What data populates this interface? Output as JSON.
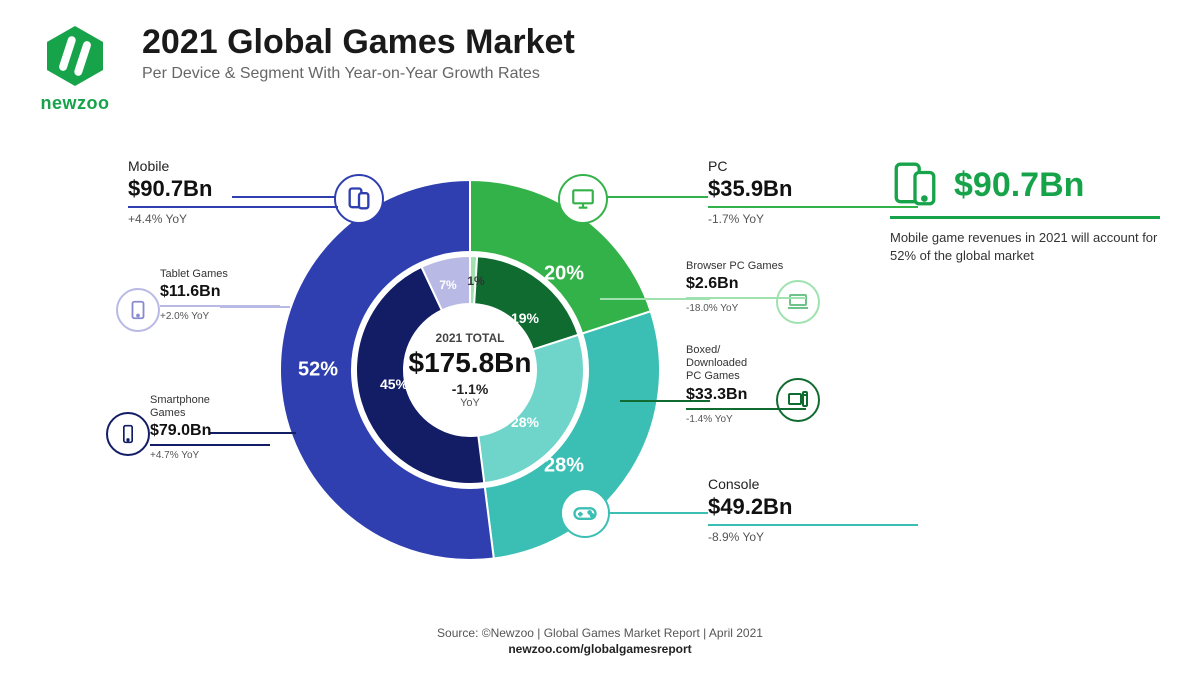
{
  "brand": {
    "name": "newzoo",
    "accent": "#16a34a",
    "logo_bg": "#16a34a",
    "logo_stripe": "#ffffff"
  },
  "header": {
    "title": "2021 Global Games Market",
    "subtitle": "Per Device & Segment With Year-on-Year Growth Rates"
  },
  "chart": {
    "type": "donut-nested",
    "background_color": "#ffffff",
    "center": {
      "label": "2021 TOTAL",
      "value": "$175.8Bn",
      "yoy": "-1.1%",
      "yoy_unit": "YoY"
    },
    "outer_ring": {
      "inner_radius": 118,
      "outer_radius": 190,
      "segments": [
        {
          "id": "pc",
          "label": "PC",
          "value": "$35.9Bn",
          "yoy": "-1.7% YoY",
          "percent": 20,
          "color": "#34b24a",
          "pct_label": "20%"
        },
        {
          "id": "console",
          "label": "Console",
          "value": "$49.2Bn",
          "yoy": "-8.9% YoY",
          "percent": 28,
          "color": "#3bbfb4",
          "pct_label": "28%"
        },
        {
          "id": "mobile",
          "label": "Mobile",
          "value": "$90.7Bn",
          "yoy": "+4.4% YoY",
          "percent": 52,
          "color": "#2f3fb0",
          "pct_label": "52%"
        }
      ]
    },
    "inner_ring": {
      "inner_radius": 66,
      "outer_radius": 114,
      "segments": [
        {
          "id": "browser-pc",
          "label": "Browser PC Games",
          "value": "$2.6Bn",
          "yoy": "-18.0% YoY",
          "percent": 1,
          "color": "#9fe2b0",
          "pct_label": "1%"
        },
        {
          "id": "boxed-pc",
          "label": "Boxed/\nDownloaded\nPC Games",
          "value": "$33.3Bn",
          "yoy": "-1.4% YoY",
          "percent": 19,
          "color": "#0f6b2f",
          "pct_label": "19%"
        },
        {
          "id": "console-inner",
          "label": "Console",
          "value": "$49.2Bn",
          "yoy": "-8.9% YoY",
          "percent": 28,
          "color": "#6fd5cb",
          "pct_label": "28%"
        },
        {
          "id": "smartphone",
          "label": "Smartphone Games",
          "value": "$79.0Bn",
          "yoy": "+4.7% YoY",
          "percent": 45,
          "color": "#131d66",
          "pct_label": "45%"
        },
        {
          "id": "tablet",
          "label": "Tablet Games",
          "value": "$11.6Bn",
          "yoy": "+2.0% YoY",
          "percent": 7,
          "color": "#b9b9e6",
          "pct_label": "7%"
        }
      ]
    },
    "pct_font_size_outer": 20,
    "pct_font_size_inner": 14
  },
  "callouts": {
    "pc": {
      "cat": "PC",
      "val": "$35.9Bn",
      "yoy": "-1.7% YoY",
      "rule_color": "#34b24a",
      "icon_border": "#34b24a"
    },
    "browserpc": {
      "cat": "Browser PC Games",
      "val": "$2.6Bn",
      "yoy": "-18.0% YoY",
      "rule_color": "#9fe2b0",
      "icon_border": "#9fe2b0"
    },
    "boxedpc": {
      "cat": "Boxed/\nDownloaded\nPC Games",
      "val": "$33.3Bn",
      "yoy": "-1.4% YoY",
      "rule_color": "#0f6b2f",
      "icon_border": "#0f6b2f"
    },
    "console": {
      "cat": "Console",
      "val": "$49.2Bn",
      "yoy": "-8.9% YoY",
      "rule_color": "#3bbfb4",
      "icon_border": "#3bbfb4"
    },
    "mobile": {
      "cat": "Mobile",
      "val": "$90.7Bn",
      "yoy": "+4.4% YoY",
      "rule_color": "#2f3fb0",
      "icon_border": "#2f3fb0"
    },
    "tablet": {
      "cat": "Tablet Games",
      "val": "$11.6Bn",
      "yoy": "+2.0% YoY",
      "rule_color": "#b9b9e6",
      "icon_border": "#b9b9e6"
    },
    "smartphone": {
      "cat": "Smartphone\nGames",
      "val": "$79.0Bn",
      "yoy": "+4.7% YoY",
      "rule_color": "#131d66",
      "icon_border": "#131d66"
    }
  },
  "highlight": {
    "value": "$90.7Bn",
    "color": "#16a34a",
    "text": "Mobile game revenues in 2021 will account for 52% of the global market"
  },
  "footer": {
    "source": "Source: ©Newzoo | Global Games Market Report | April 2021",
    "domain": "newzoo.com/globalgamesreport"
  },
  "icons": {
    "stroke_width": 2
  }
}
